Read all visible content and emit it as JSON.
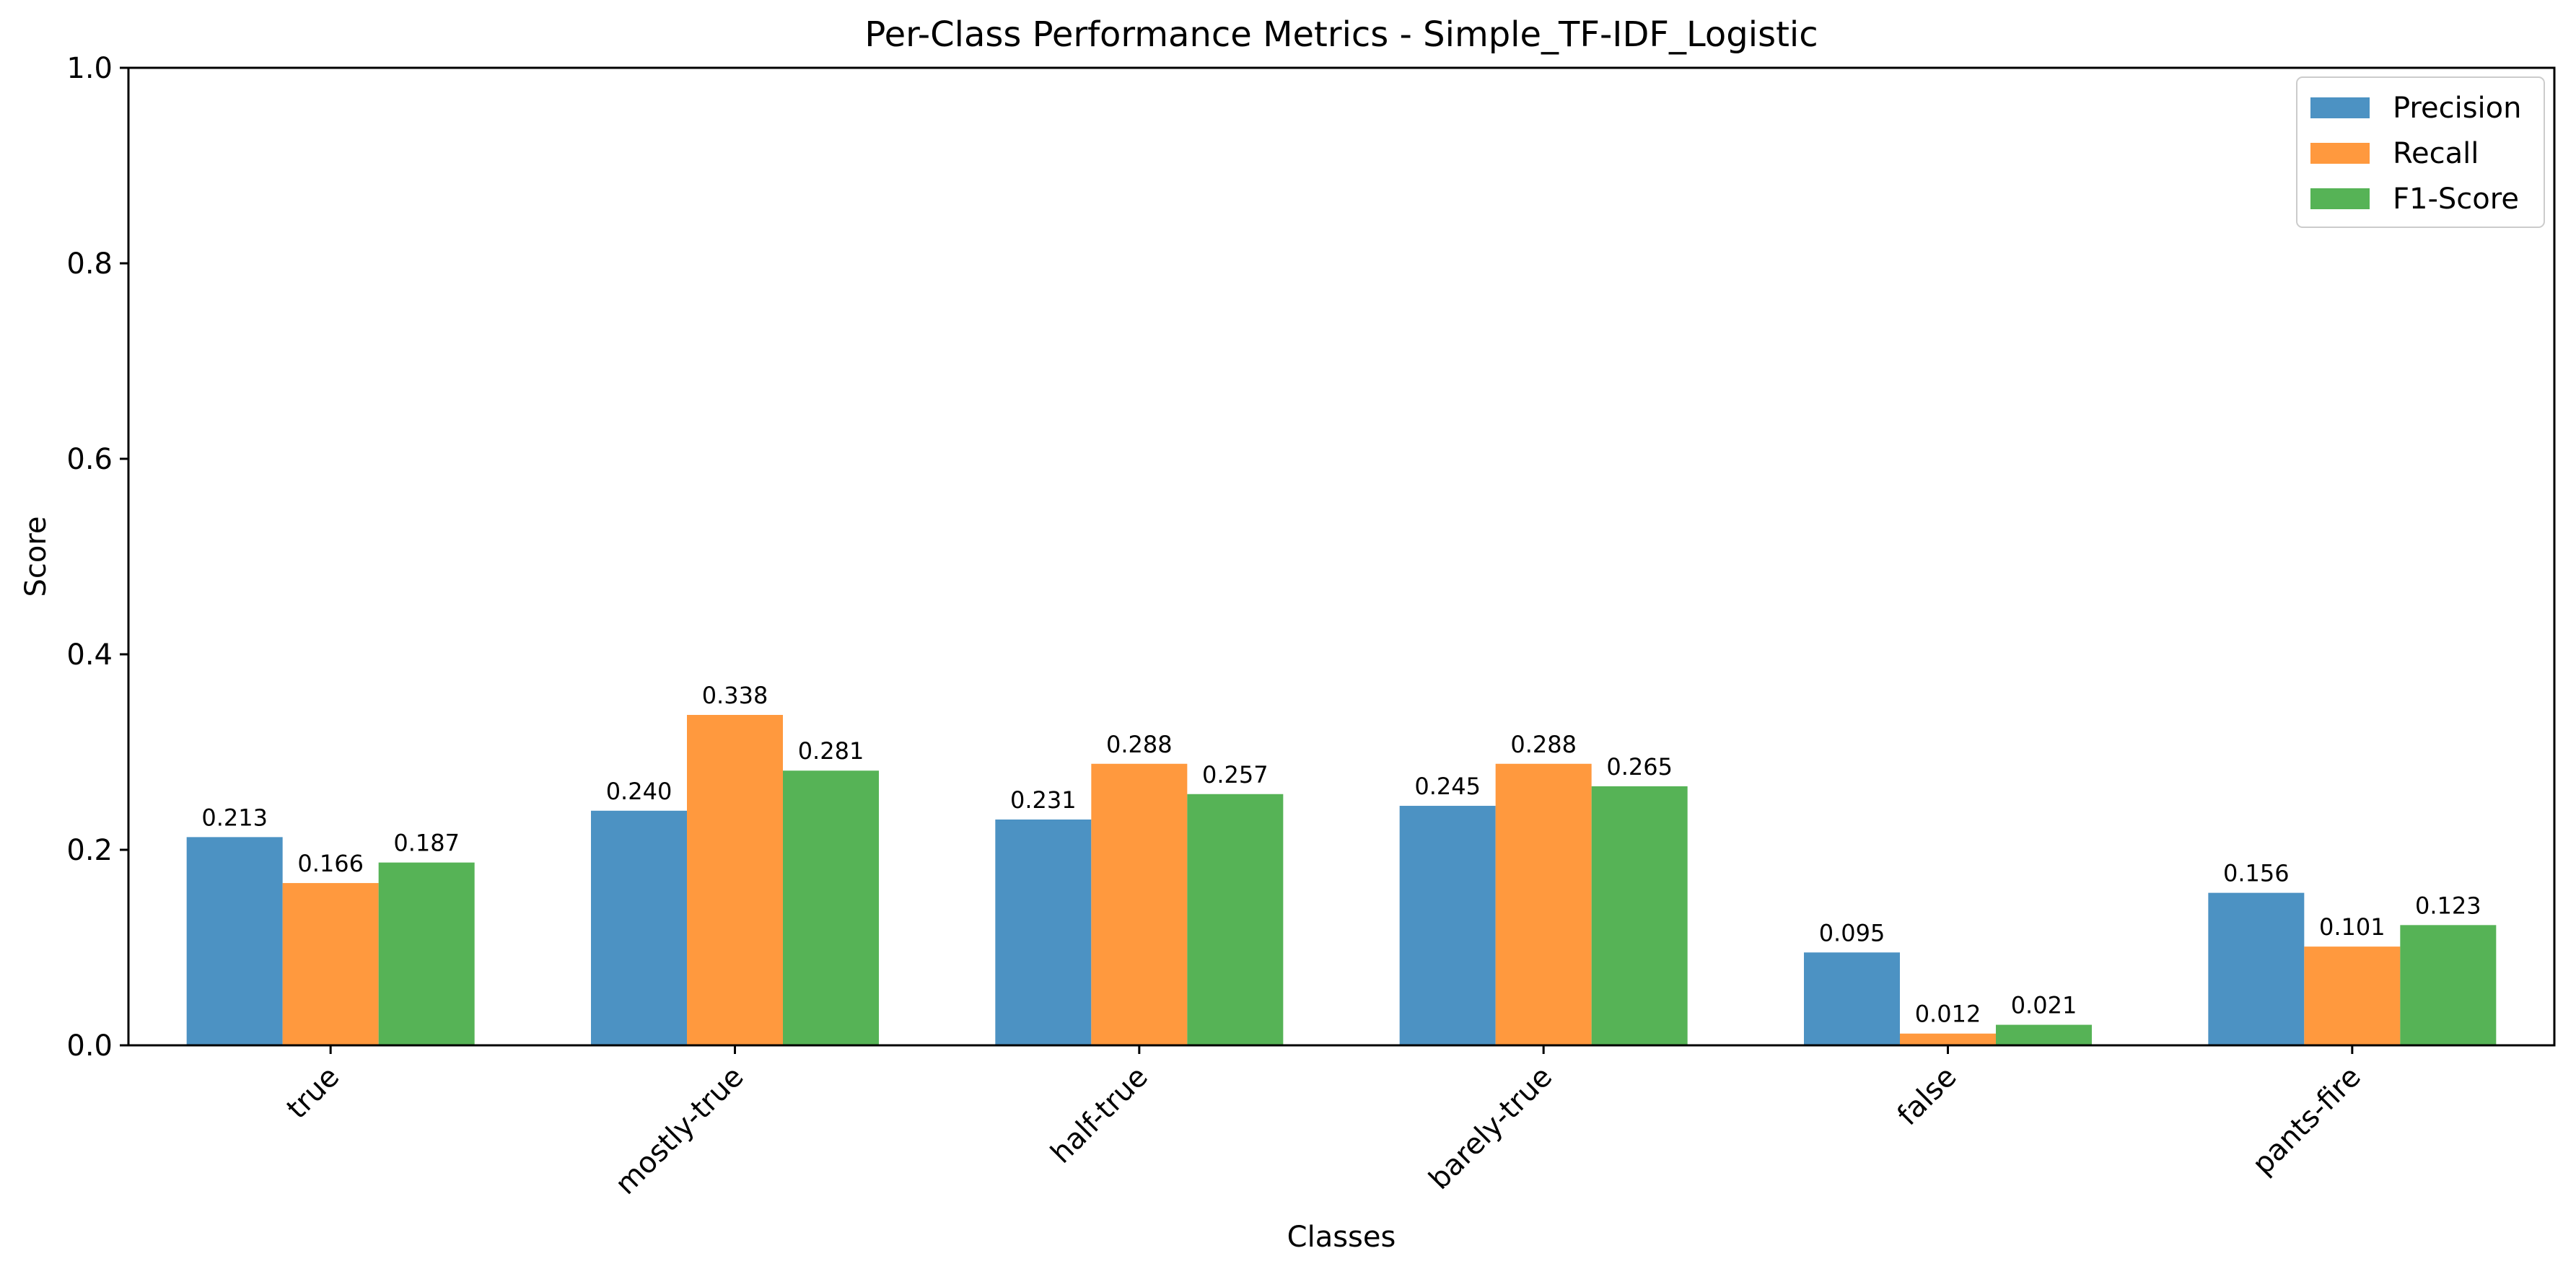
{
  "chart_data": {
    "type": "bar",
    "title": "Per-Class Performance Metrics - Simple_TF-IDF_Logistic",
    "xlabel": "Classes",
    "ylabel": "Score",
    "ylim": [
      0,
      1.0
    ],
    "yticks": [
      "0.0",
      "0.2",
      "0.4",
      "0.6",
      "0.8",
      "1.0"
    ],
    "ytick_values": [
      0,
      0.2,
      0.4,
      0.6,
      0.8,
      1.0
    ],
    "categories": [
      "true",
      "mostly-true",
      "half-true",
      "barely-true",
      "false",
      "pants-fire"
    ],
    "series": [
      {
        "name": "Precision",
        "color": "#4c92c3",
        "values": [
          0.213,
          0.24,
          0.231,
          0.245,
          0.095,
          0.156
        ],
        "labels": [
          "0.213",
          "0.240",
          "0.231",
          "0.245",
          "0.095",
          "0.156"
        ]
      },
      {
        "name": "Recall",
        "color": "#ff993e",
        "values": [
          0.166,
          0.338,
          0.288,
          0.288,
          0.012,
          0.101
        ],
        "labels": [
          "0.166",
          "0.338",
          "0.288",
          "0.288",
          "0.012",
          "0.101"
        ]
      },
      {
        "name": "F1-Score",
        "color": "#56b356",
        "values": [
          0.187,
          0.281,
          0.257,
          0.265,
          0.021,
          0.123
        ],
        "labels": [
          "0.187",
          "0.281",
          "0.257",
          "0.265",
          "0.021",
          "0.123"
        ]
      }
    ],
    "legend_position": "top-right",
    "grid": false
  }
}
